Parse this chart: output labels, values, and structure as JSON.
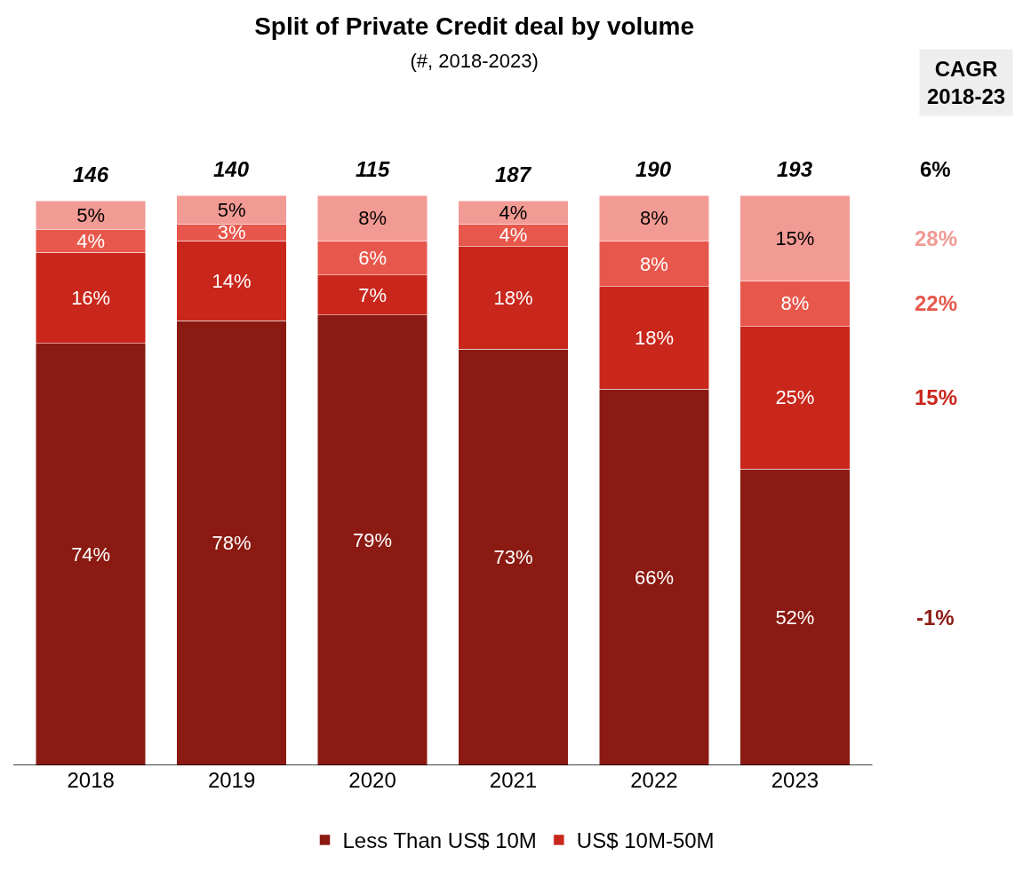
{
  "chart_data": {
    "type": "bar",
    "stacked": true,
    "legend": "bottom",
    "title": "Split of Private Credit deal by volume",
    "subtitle": "(#, 2018-2023)",
    "categories": [
      "2018",
      "2019",
      "2020",
      "2021",
      "2022",
      "2023"
    ],
    "series": [
      {
        "name": "Less Than US$ 10M",
        "color": "#8b1a12",
        "values": [
          74,
          78,
          79,
          73,
          66,
          52
        ],
        "value_labels": [
          "74%",
          "78%",
          "79%",
          "73%",
          "66%",
          "52%"
        ]
      },
      {
        "name": "US$ 10M-50M",
        "color": "#c9261c",
        "values": [
          16,
          14,
          7,
          18,
          18,
          25
        ],
        "value_labels": [
          "16%",
          "14%",
          "7%",
          "18%",
          "18%",
          "25%"
        ]
      },
      {
        "color": "#e8574c",
        "values": [
          4,
          3,
          6,
          4,
          8,
          8
        ],
        "value_labels": [
          "4%",
          "3%",
          "6%",
          "4%",
          "8%",
          "8%"
        ]
      },
      {
        "color": "#f29a94",
        "values": [
          5,
          5,
          8,
          4,
          8,
          15
        ],
        "value_labels": [
          "5%",
          "5%",
          "8%",
          "4%",
          "8%",
          "15%"
        ]
      }
    ],
    "annotations": [
      "146",
      "140",
      "115",
      "187",
      "190",
      "193",
      "CAGR\n2018-23",
      "6%",
      "28%",
      "22%",
      "15%",
      "-1%"
    ]
  }
}
